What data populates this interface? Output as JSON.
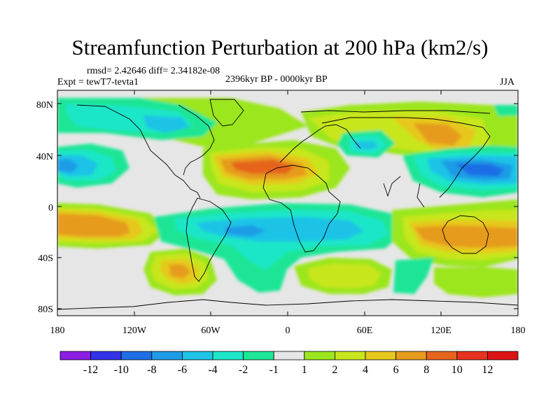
{
  "title": "Streamfunction Perturbation at 200 hPa (km2/s)",
  "stats_line": "rmsd= 2.42646 diff= 2.34182e-08",
  "experiment": "Expt = tewT7-tevta1",
  "period": "2396kyr BP - 0000kyr BP",
  "season": "JJA",
  "map": {
    "lat_ticks": [
      "80N",
      "40N",
      "0",
      "40S",
      "80S"
    ],
    "lon_ticks": [
      "180",
      "120W",
      "60W",
      "0",
      "60E",
      "120E",
      "180"
    ],
    "ocean_color": "#e6e6e6",
    "coastline_color": "#000000"
  },
  "colorbar": {
    "colors": [
      "#8c1ee6",
      "#3232e6",
      "#1e6ee6",
      "#1e9be6",
      "#1ec3e6",
      "#1ee6c8",
      "#1ee696",
      "#e6e6e6",
      "#9be61e",
      "#c8e61e",
      "#e6c81e",
      "#e69b1e",
      "#e6641e",
      "#e6321e",
      "#dc1414"
    ],
    "labels": [
      "-12",
      "-10",
      "-8",
      "-6",
      "-4",
      "-2",
      "-1",
      "1",
      "2",
      "4",
      "6",
      "8",
      "10",
      "12"
    ]
  }
}
